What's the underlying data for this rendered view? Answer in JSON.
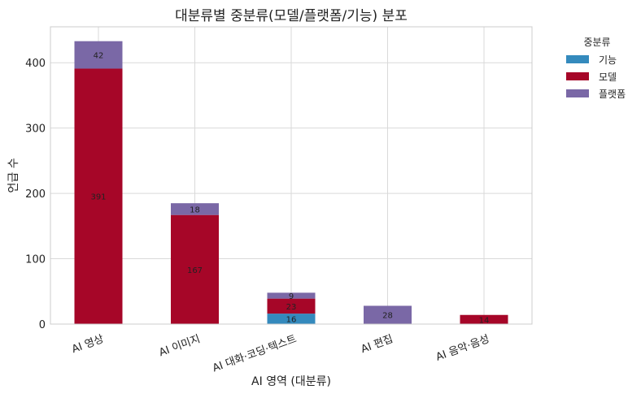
{
  "chart_data": {
    "type": "bar",
    "stacked": true,
    "title": "대분류별 중분류(모델/플랫폼/기능) 분포",
    "xlabel": "AI 영역 (대분류)",
    "ylabel": "언급 수",
    "categories": [
      "AI 영상",
      "AI 이미지",
      "AI 대화·코딩·텍스트",
      "AI 편집",
      "AI 음악·음성"
    ],
    "series": [
      {
        "name": "기능",
        "color": "#348abd",
        "values": [
          0,
          0,
          16,
          0,
          0
        ]
      },
      {
        "name": "모델",
        "color": "#a60628",
        "values": [
          391,
          167,
          23,
          0,
          14
        ]
      },
      {
        "name": "플랫폼",
        "color": "#7a68a6",
        "values": [
          42,
          18,
          9,
          28,
          0
        ]
      }
    ],
    "ylim": [
      0,
      455
    ],
    "yticks": [
      0,
      100,
      200,
      300,
      400
    ],
    "grid": true,
    "legend": {
      "title": "중분류",
      "placement": "outside-top-right"
    }
  }
}
